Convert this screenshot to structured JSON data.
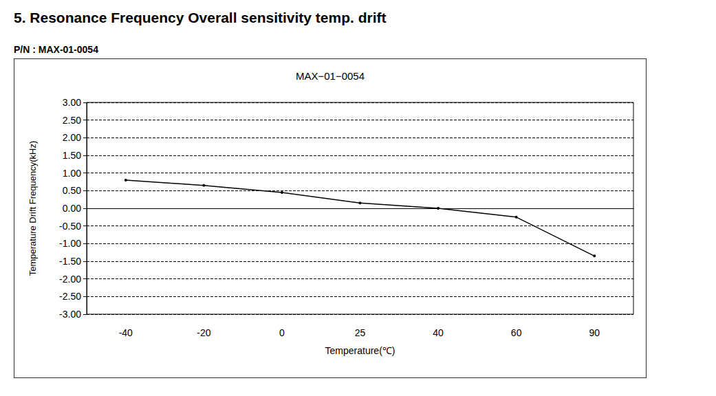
{
  "heading": "5. Resonance Frequency Overall sensitivity temp. drift",
  "part_number": "P/N : MAX-01-0054",
  "chart_data": {
    "type": "line",
    "title": "MAX−01−0054",
    "x_label": "Temperature(℃)",
    "y_label": "Temperature Drift Frequency(kHz)",
    "categories": [
      "-40",
      "-20",
      "0",
      "25",
      "40",
      "60",
      "90"
    ],
    "series": [
      {
        "name": "MAX-01-0054",
        "color": "#000000",
        "marker": "circle",
        "line_style": "solid",
        "values": [
          0.8,
          0.65,
          0.45,
          0.15,
          0.0,
          -0.25,
          -1.35
        ]
      }
    ],
    "ylim": [
      -3,
      3
    ],
    "yticks": [
      {
        "value": -3,
        "label": "-3.00"
      },
      {
        "value": -2.5,
        "label": "-2.50"
      },
      {
        "value": -2,
        "label": "-2.00"
      },
      {
        "value": -1.5,
        "label": "-1.50"
      },
      {
        "value": -1,
        "label": "-1.00"
      },
      {
        "value": -0.5,
        "label": "-0.50"
      },
      {
        "value": 0,
        "label": "0.00"
      },
      {
        "value": 0.5,
        "label": "0.50"
      },
      {
        "value": 1,
        "label": "1.00"
      },
      {
        "value": 1.5,
        "label": "1.50"
      },
      {
        "value": 2,
        "label": "2.00"
      },
      {
        "value": 2.5,
        "label": "2.50"
      },
      {
        "value": 3,
        "label": "3.00"
      }
    ],
    "grid": true
  }
}
